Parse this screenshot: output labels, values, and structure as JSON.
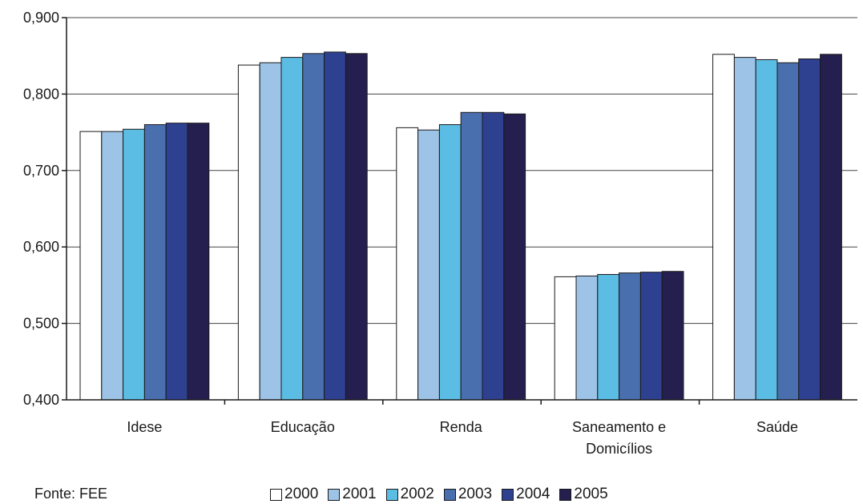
{
  "source": "Fonte: FEE",
  "chart_data": {
    "type": "bar",
    "title": "",
    "xlabel": "",
    "ylabel": "",
    "ylim": [
      0.4,
      0.9
    ],
    "yticks": [
      "0,900",
      "0,800",
      "0,700",
      "0,600",
      "0,500",
      "0,400"
    ],
    "ytick_values": [
      0.9,
      0.8,
      0.7,
      0.6,
      0.5,
      0.4
    ],
    "grid": true,
    "legend_position": "bottom",
    "categories": [
      [
        "Idese"
      ],
      [
        "Educação"
      ],
      [
        "Renda"
      ],
      [
        "Saneamento e",
        "Domicílios"
      ],
      [
        "Saúde"
      ]
    ],
    "series": [
      {
        "name": "2000",
        "color": "#ffffff",
        "values": [
          0.751,
          0.838,
          0.756,
          0.561,
          0.852
        ]
      },
      {
        "name": "2001",
        "color": "#9dc3e6",
        "values": [
          0.751,
          0.841,
          0.753,
          0.562,
          0.848
        ]
      },
      {
        "name": "2002",
        "color": "#5bbde3",
        "values": [
          0.754,
          0.848,
          0.76,
          0.564,
          0.845
        ]
      },
      {
        "name": "2003",
        "color": "#4a6fae",
        "values": [
          0.76,
          0.853,
          0.776,
          0.566,
          0.841
        ]
      },
      {
        "name": "2004",
        "color": "#2e4090",
        "values": [
          0.762,
          0.855,
          0.776,
          0.567,
          0.846
        ]
      },
      {
        "name": "2005",
        "color": "#241f4e",
        "values": [
          0.762,
          0.853,
          0.774,
          0.568,
          0.852
        ]
      }
    ]
  }
}
